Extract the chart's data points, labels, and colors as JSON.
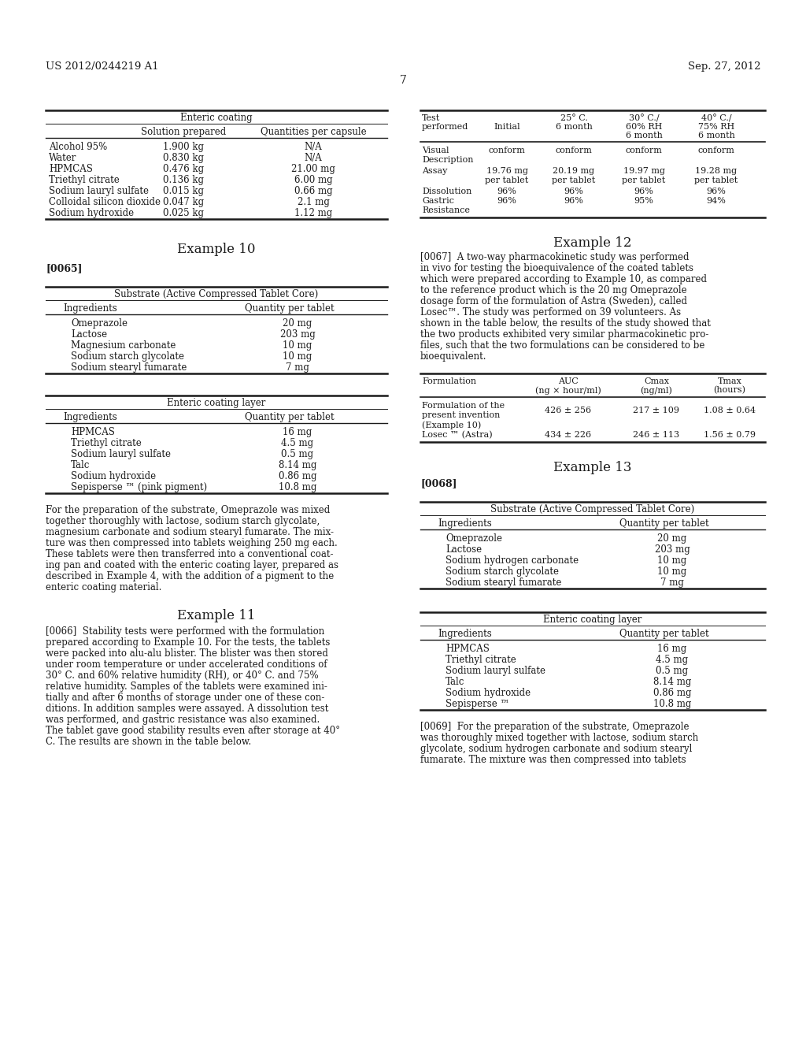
{
  "bg_color": "#ffffff",
  "header_left": "US 2012/0244219 A1",
  "header_right": "Sep. 27, 2012",
  "page_number": "7",
  "table1_title": "Enteric coating",
  "table1_col1": "Solution prepared",
  "table1_col2": "Quantities per capsule",
  "table1_rows": [
    [
      "Alcohol 95%",
      "1.900 kg",
      "N/A"
    ],
    [
      "Water",
      "0.830 kg",
      "N/A"
    ],
    [
      "HPMCAS",
      "0.476 kg",
      "21.00 mg"
    ],
    [
      "Triethyl citrate",
      "0.136 kg",
      "6.00 mg"
    ],
    [
      "Sodium lauryl sulfate",
      "0.015 kg",
      "0.66 mg"
    ],
    [
      "Colloidal silicon dioxide",
      "0.047 kg",
      "2.1 mg"
    ],
    [
      "Sodium hydroxide",
      "0.025 kg",
      "1.12 mg"
    ]
  ],
  "example10_title": "Example 10",
  "table2_title": "Substrate (Active Compressed Tablet Core)",
  "table2_col1": "Ingredients",
  "table2_col2": "Quantity per tablet",
  "table2_rows": [
    [
      "Omeprazole",
      "20 mg"
    ],
    [
      "Lactose",
      "203 mg"
    ],
    [
      "Magnesium carbonate",
      "10 mg"
    ],
    [
      "Sodium starch glycolate",
      "10 mg"
    ],
    [
      "Sodium stearyl fumarate",
      "7 mg"
    ]
  ],
  "table3_title": "Enteric coating layer",
  "table3_col1": "Ingredients",
  "table3_col2": "Quantity per tablet",
  "table3_rows": [
    [
      "HPMCAS",
      "16 mg"
    ],
    [
      "Triethyl citrate",
      "4.5 mg"
    ],
    [
      "Sodium lauryl sulfate",
      "0.5 mg"
    ],
    [
      "Talc",
      "8.14 mg"
    ],
    [
      "Sodium hydroxide",
      "0.86 mg"
    ],
    [
      "Sepisperse ™ (pink pigment)",
      "10.8 mg"
    ]
  ],
  "para_ex10_lines": [
    "For the preparation of the substrate, Omeprazole was mixed",
    "together thoroughly with lactose, sodium starch glycolate,",
    "magnesium carbonate and sodium stearyl fumarate. The mix-",
    "ture was then compressed into tablets weighing 250 mg each.",
    "These tablets were then transferred into a conventional coat-",
    "ing pan and coated with the enteric coating layer, prepared as",
    "described in Example 4, with the addition of a pigment to the",
    "enteric coating material."
  ],
  "example11_title": "Example 11",
  "ex11_lines": [
    "[0066]  Stability tests were performed with the formulation",
    "prepared according to Example 10. For the tests, the tablets",
    "were packed into alu-alu blister. The blister was then stored",
    "under room temperature or under accelerated conditions of",
    "30° C. and 60% relative humidity (RH), or 40° C. and 75%",
    "relative humidity. Samples of the tablets were examined ini-",
    "tially and after 6 months of storage under one of these con-",
    "ditions. In addition samples were assayed. A dissolution test",
    "was performed, and gastric resistance was also examined.",
    "The tablet gave good stability results even after storage at 40°",
    "C. The results are shown in the table below."
  ],
  "stability_rows": [
    [
      "Visual",
      "conform",
      "conform",
      "conform",
      "conform"
    ],
    [
      "Description",
      "",
      "",
      "",
      ""
    ],
    [
      "Assay",
      "19.76 mg",
      "20.19 mg",
      "19.97 mg",
      "19.28 mg"
    ],
    [
      "",
      "per tablet",
      "per tablet",
      "per tablet",
      "per tablet"
    ],
    [
      "Dissolution",
      "96%",
      "96%",
      "96%",
      "96%"
    ],
    [
      "Gastric",
      "96%",
      "96%",
      "95%",
      "94%"
    ],
    [
      "Resistance",
      "",
      "",
      "",
      ""
    ]
  ],
  "example12_title": "Example 12",
  "ex12_lines": [
    "[0067]  A two-way pharmacokinetic study was performed",
    "in vivo for testing the bioequivalence of the coated tablets",
    "which were prepared according to Example 10, as compared",
    "to the reference product which is the 20 mg Omeprazole",
    "dosage form of the formulation of Astra (Sweden), called",
    "Losec™. The study was performed on 39 volunteers. As",
    "shown in the table below, the results of the study showed that",
    "the two products exhibited very similar pharmacokinetic pro-",
    "files, such that the two formulations can be considered to be",
    "bioequivalent."
  ],
  "pk_rows": [
    [
      "Formulation of the",
      "426 ± 256",
      "217 ± 109",
      "1.08 ± 0.64"
    ],
    [
      "present invention",
      "",
      "",
      ""
    ],
    [
      "(Example 10)",
      "",
      "",
      ""
    ],
    [
      "Losec ™ (Astra)",
      "434 ± 226",
      "246 ± 113",
      "1.56 ± 0.79"
    ]
  ],
  "example13_title": "Example 13",
  "table4_title": "Substrate (Active Compressed Tablet Core)",
  "table4_col1": "Ingredients",
  "table4_col2": "Quantity per tablet",
  "table4_rows": [
    [
      "Omeprazole",
      "20 mg"
    ],
    [
      "Lactose",
      "203 mg"
    ],
    [
      "Sodium hydrogen carbonate",
      "10 mg"
    ],
    [
      "Sodium starch glycolate",
      "10 mg"
    ],
    [
      "Sodium stearyl fumarate",
      "7 mg"
    ]
  ],
  "table5_title": "Enteric coating layer",
  "table5_col1": "Ingredients",
  "table5_col2": "Quantity per tablet",
  "table5_rows": [
    [
      "HPMCAS",
      "16 mg"
    ],
    [
      "Triethyl citrate",
      "4.5 mg"
    ],
    [
      "Sodium lauryl sulfate",
      "0.5 mg"
    ],
    [
      "Talc",
      "8.14 mg"
    ],
    [
      "Sodium hydroxide",
      "0.86 mg"
    ],
    [
      "Sepisperse ™",
      "10.8 mg"
    ]
  ],
  "ex13_lines": [
    "[0069]  For the preparation of the substrate, Omeprazole",
    "was thoroughly mixed together with lactose, sodium starch",
    "glycolate, sodium hydrogen carbonate and sodium stearyl",
    "fumarate. The mixture was then compressed into tablets"
  ]
}
